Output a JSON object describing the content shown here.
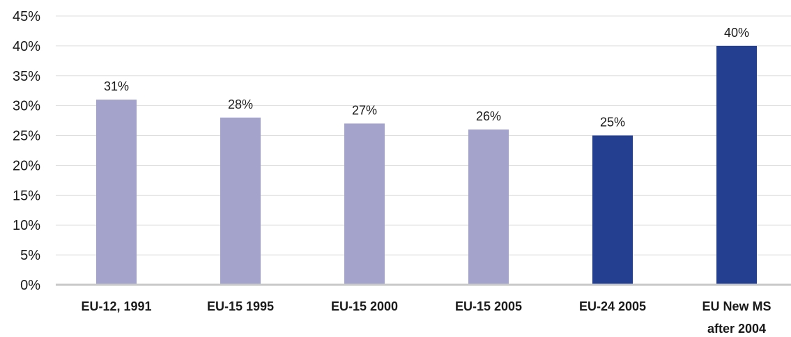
{
  "chart_data": {
    "type": "bar",
    "categories": [
      [
        "EU-12, 1991"
      ],
      [
        "EU-15 1995"
      ],
      [
        "EU-15 2000"
      ],
      [
        "EU-15 2005"
      ],
      [
        "EU-24 2005"
      ],
      [
        "EU New MS",
        "after 2004"
      ]
    ],
    "values": [
      31,
      28,
      27,
      26,
      25,
      40
    ],
    "data_labels": [
      "31%",
      "28%",
      "27%",
      "26%",
      "25%",
      "40%"
    ],
    "bar_colors": [
      "#a3a3cc",
      "#a3a3cc",
      "#a3a3cc",
      "#a3a3cc",
      "#243f8f",
      "#243f8f"
    ],
    "yticks": [
      "0%",
      "5%",
      "10%",
      "15%",
      "20%",
      "25%",
      "30%",
      "35%",
      "40%",
      "45%"
    ],
    "ylim": [
      0,
      45
    ],
    "ytick_step": 5,
    "grid": true,
    "title": "",
    "xlabel": "",
    "ylabel": ""
  }
}
